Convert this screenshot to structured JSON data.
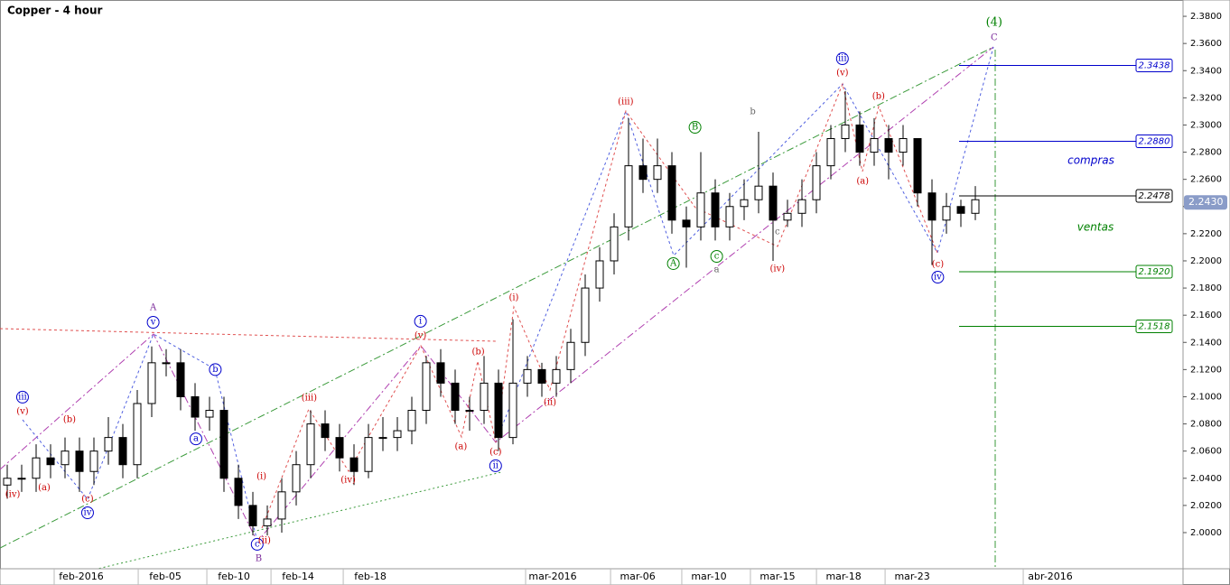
{
  "chart_data": {
    "type": "candlestick",
    "title": "Copper - 4 hour",
    "x": [
      0,
      1,
      2,
      3,
      4,
      5,
      6,
      7,
      8,
      9,
      10,
      11,
      12,
      13,
      14,
      15,
      16,
      17,
      18,
      19,
      20,
      21,
      22,
      23,
      24,
      25,
      26,
      27,
      28,
      29,
      30,
      31,
      32,
      33,
      34,
      35,
      36,
      37,
      38,
      39,
      40,
      41,
      42,
      43,
      44,
      45,
      46,
      47,
      48,
      49,
      50,
      51,
      52,
      53,
      54,
      55,
      56,
      57,
      58,
      59,
      60,
      61,
      62,
      63,
      64,
      65,
      66,
      67
    ],
    "open": [
      2.035,
      2.04,
      2.04,
      2.055,
      2.05,
      2.06,
      2.045,
      2.06,
      2.07,
      2.05,
      2.095,
      2.125,
      2.125,
      2.1,
      2.085,
      2.09,
      2.04,
      2.02,
      2.005,
      2.01,
      2.03,
      2.05,
      2.08,
      2.07,
      2.055,
      2.045,
      2.07,
      2.07,
      2.075,
      2.09,
      2.125,
      2.11,
      2.09,
      2.09,
      2.11,
      2.07,
      2.11,
      2.12,
      2.11,
      2.12,
      2.14,
      2.18,
      2.2,
      2.225,
      2.27,
      2.26,
      2.27,
      2.23,
      2.225,
      2.25,
      2.225,
      2.24,
      2.245,
      2.255,
      2.23,
      2.235,
      2.245,
      2.27,
      2.29,
      2.3,
      2.28,
      2.29,
      2.28,
      2.29,
      2.25,
      2.23,
      2.24,
      2.235
    ],
    "high": [
      2.05,
      2.05,
      2.065,
      2.065,
      2.07,
      2.07,
      2.07,
      2.085,
      2.08,
      2.105,
      2.137,
      2.135,
      2.135,
      2.11,
      2.1,
      2.1,
      2.05,
      2.03,
      2.02,
      2.04,
      2.06,
      2.09,
      2.09,
      2.08,
      2.065,
      2.08,
      2.085,
      2.085,
      2.1,
      2.13,
      2.135,
      2.12,
      2.1,
      2.13,
      2.12,
      2.157,
      2.13,
      2.125,
      2.13,
      2.15,
      2.19,
      2.21,
      2.235,
      2.305,
      2.29,
      2.29,
      2.28,
      2.24,
      2.28,
      2.26,
      2.25,
      2.26,
      2.295,
      2.265,
      2.245,
      2.26,
      2.28,
      2.3,
      2.325,
      2.31,
      2.305,
      2.3,
      2.3,
      2.29,
      2.26,
      2.25,
      2.245,
      2.255
    ],
    "low": [
      2.025,
      2.03,
      2.03,
      2.04,
      2.04,
      2.03,
      2.035,
      2.05,
      2.04,
      2.04,
      2.085,
      2.115,
      2.09,
      2.075,
      2.075,
      2.03,
      2.01,
      1.998,
      1.998,
      2.0,
      2.02,
      2.04,
      2.06,
      2.045,
      2.035,
      2.04,
      2.06,
      2.06,
      2.065,
      2.08,
      2.1,
      2.08,
      2.075,
      2.08,
      2.06,
      2.065,
      2.1,
      2.1,
      2.1,
      2.11,
      2.13,
      2.17,
      2.19,
      2.215,
      2.25,
      2.25,
      2.22,
      2.195,
      2.215,
      2.215,
      2.215,
      2.23,
      2.235,
      2.2,
      2.225,
      2.225,
      2.235,
      2.26,
      2.28,
      2.27,
      2.27,
      2.26,
      2.27,
      2.24,
      2.197,
      2.22,
      2.225,
      2.23
    ],
    "close": [
      2.04,
      2.04,
      2.055,
      2.05,
      2.06,
      2.045,
      2.06,
      2.07,
      2.05,
      2.095,
      2.125,
      2.125,
      2.1,
      2.085,
      2.09,
      2.04,
      2.02,
      2.005,
      2.01,
      2.03,
      2.05,
      2.08,
      2.07,
      2.055,
      2.045,
      2.07,
      2.07,
      2.075,
      2.09,
      2.125,
      2.11,
      2.09,
      2.09,
      2.11,
      2.07,
      2.11,
      2.12,
      2.11,
      2.12,
      2.14,
      2.18,
      2.2,
      2.225,
      2.27,
      2.26,
      2.27,
      2.23,
      2.225,
      2.25,
      2.225,
      2.24,
      2.245,
      2.255,
      2.23,
      2.235,
      2.245,
      2.27,
      2.29,
      2.3,
      2.28,
      2.29,
      2.28,
      2.29,
      2.25,
      2.23,
      2.24,
      2.235,
      2.245
    ],
    "color": "#000000",
    "xlim": [
      -0.5,
      81.375
    ],
    "xticks": [
      {
        "value": 5.125,
        "label": "feb-2016"
      },
      {
        "value": 10.94,
        "label": "feb-05"
      },
      {
        "value": 15.69,
        "label": "feb-10"
      },
      {
        "value": 20.13,
        "label": "feb-14"
      },
      {
        "value": 25.13,
        "label": "feb-18"
      },
      {
        "value": 37.75,
        "label": "mar-2016"
      },
      {
        "value": 43.63,
        "label": "mar-06"
      },
      {
        "value": 48.56,
        "label": "mar-10"
      },
      {
        "value": 53.31,
        "label": "mar-15"
      },
      {
        "value": 57.88,
        "label": "mar-18"
      },
      {
        "value": 62.63,
        "label": "mar-23"
      },
      {
        "value": 72.19,
        "label": "abr-2016"
      }
    ],
    "ylim": [
      1.9734,
      2.392
    ],
    "yticks": [
      {
        "value": 2.0,
        "label": "2.0000"
      },
      {
        "value": 2.02,
        "label": "2.0200"
      },
      {
        "value": 2.04,
        "label": "2.0400"
      },
      {
        "value": 2.06,
        "label": "2.0600"
      },
      {
        "value": 2.08,
        "label": "2.0800"
      },
      {
        "value": 2.1,
        "label": "2.1000"
      },
      {
        "value": 2.12,
        "label": "2.1200"
      },
      {
        "value": 2.14,
        "label": "2.1400"
      },
      {
        "value": 2.16,
        "label": "2.1600"
      },
      {
        "value": 2.18,
        "label": "2.1800"
      },
      {
        "value": 2.2,
        "label": "2.2000"
      },
      {
        "value": 2.22,
        "label": "2.2200"
      },
      {
        "value": 2.24,
        "label": "2.2400"
      },
      {
        "value": 2.26,
        "label": "2.2600"
      },
      {
        "value": 2.28,
        "label": "2.2800"
      },
      {
        "value": 2.3,
        "label": "2.3000"
      },
      {
        "value": 2.32,
        "label": "2.3200"
      },
      {
        "value": 2.34,
        "label": "2.3400"
      },
      {
        "value": 2.36,
        "label": "2.3600"
      },
      {
        "value": 2.38,
        "label": "2.3800"
      }
    ],
    "levels": {
      "values": [
        2.3438,
        2.288,
        2.2478,
        2.192,
        2.1518
      ],
      "value_labels": [
        "2.3438",
        "2.2880",
        "2.2478",
        "2.1920",
        "2.1518"
      ],
      "colors": [
        "#0000cc",
        "#0000cc",
        "#000000",
        "#008000",
        "#008000"
      ]
    },
    "last": {
      "value": 2.243,
      "label": "2.2430"
    },
    "zone_labels": [
      "compras",
      "ventas"
    ],
    "annotations": [
      {
        "text": "A",
        "x": 10.1,
        "y": 2.1654,
        "color": "#7b2a9a",
        "circled": false
      },
      {
        "text": "v",
        "x": 10.1,
        "y": 2.1548,
        "color": "#0000cc",
        "circled": true
      },
      {
        "text": "iii",
        "x": 1.06,
        "y": 2.0997,
        "color": "#0000cc",
        "circled": true
      },
      {
        "text": "(v)",
        "x": 1.06,
        "y": 2.089,
        "color": "#cc0000",
        "circled": false
      },
      {
        "text": "(iv)",
        "x": 0.38,
        "y": 2.028,
        "color": "#cc0000",
        "circled": false
      },
      {
        "text": "(a)",
        "x": 2.56,
        "y": 2.033,
        "color": "#cc0000",
        "circled": false
      },
      {
        "text": "(b)",
        "x": 4.31,
        "y": 2.083,
        "color": "#cc0000",
        "circled": false
      },
      {
        "text": "(c)",
        "x": 5.56,
        "y": 2.0246,
        "color": "#cc0000",
        "circled": false
      },
      {
        "text": "iv",
        "x": 5.56,
        "y": 2.0146,
        "color": "#0000cc",
        "circled": true
      },
      {
        "text": "a",
        "x": 13.06,
        "y": 2.069,
        "color": "#0000cc",
        "circled": true
      },
      {
        "text": "b",
        "x": 14.4,
        "y": 2.12,
        "color": "#0000cc",
        "circled": true
      },
      {
        "text": "c",
        "x": 17.3,
        "y": 1.9914,
        "color": "#0000cc",
        "circled": true
      },
      {
        "text": "B",
        "x": 17.4,
        "y": 1.9807,
        "color": "#7b2a9a",
        "circled": false
      },
      {
        "text": "(ii)",
        "x": 17.8,
        "y": 1.994,
        "color": "#cc0000",
        "circled": false
      },
      {
        "text": "(i)",
        "x": 17.6,
        "y": 2.0412,
        "color": "#cc0000",
        "circled": false
      },
      {
        "text": "(iii)",
        "x": 20.9,
        "y": 2.099,
        "color": "#cc0000",
        "circled": false
      },
      {
        "text": "(iv)",
        "x": 23.6,
        "y": 2.0386,
        "color": "#cc0000",
        "circled": false
      },
      {
        "text": "i",
        "x": 28.6,
        "y": 2.1555,
        "color": "#0000cc",
        "circled": true
      },
      {
        "text": "(v)",
        "x": 28.6,
        "y": 2.1448,
        "color": "#cc0000",
        "circled": false
      },
      {
        "text": "(b)",
        "x": 32.6,
        "y": 2.1329,
        "color": "#cc0000",
        "circled": false
      },
      {
        "text": "(a)",
        "x": 31.4,
        "y": 2.063,
        "color": "#cc0000",
        "circled": false
      },
      {
        "text": "(c)",
        "x": 33.8,
        "y": 2.0591,
        "color": "#cc0000",
        "circled": false
      },
      {
        "text": "ii",
        "x": 33.8,
        "y": 2.0492,
        "color": "#0000cc",
        "circled": true
      },
      {
        "text": "(i)",
        "x": 35.06,
        "y": 2.1727,
        "color": "#cc0000",
        "circled": false
      },
      {
        "text": "(ii)",
        "x": 37.56,
        "y": 2.0957,
        "color": "#cc0000",
        "circled": false
      },
      {
        "text": "(iii)",
        "x": 42.8,
        "y": 2.3169,
        "color": "#cc0000",
        "circled": false
      },
      {
        "text": "B",
        "x": 47.6,
        "y": 2.2983,
        "color": "#008000",
        "circled": true
      },
      {
        "text": "A",
        "x": 46.1,
        "y": 2.198,
        "color": "#008000",
        "circled": true
      },
      {
        "text": "c",
        "x": 49.1,
        "y": 2.2033,
        "color": "#008000",
        "circled": true
      },
      {
        "text": "a",
        "x": 49.1,
        "y": 2.1933,
        "color": "#666666",
        "circled": false
      },
      {
        "text": "b",
        "x": 51.6,
        "y": 2.3096,
        "color": "#666666",
        "circled": false
      },
      {
        "text": "c",
        "x": 53.3,
        "y": 2.2212,
        "color": "#666666",
        "circled": false
      },
      {
        "text": "(iv)",
        "x": 53.3,
        "y": 2.194,
        "color": "#cc0000",
        "circled": false
      },
      {
        "text": "iii",
        "x": 57.8,
        "y": 2.3488,
        "color": "#0000cc",
        "circled": true
      },
      {
        "text": "(v)",
        "x": 57.8,
        "y": 2.3381,
        "color": "#cc0000",
        "circled": false
      },
      {
        "text": "(b)",
        "x": 60.3,
        "y": 2.3209,
        "color": "#cc0000",
        "circled": false
      },
      {
        "text": "(a)",
        "x": 59.2,
        "y": 2.2585,
        "color": "#cc0000",
        "circled": false
      },
      {
        "text": "(c)",
        "x": 64.4,
        "y": 2.1973,
        "color": "#cc0000",
        "circled": false
      },
      {
        "text": "iv",
        "x": 64.4,
        "y": 2.188,
        "color": "#0000cc",
        "circled": true
      },
      {
        "text": "(4)",
        "x": 68.3,
        "y": 2.3753,
        "color": "#008000",
        "circled": false
      },
      {
        "text": "C",
        "x": 68.3,
        "y": 2.3641,
        "color": "#7b2a9a",
        "circled": false
      }
    ]
  }
}
